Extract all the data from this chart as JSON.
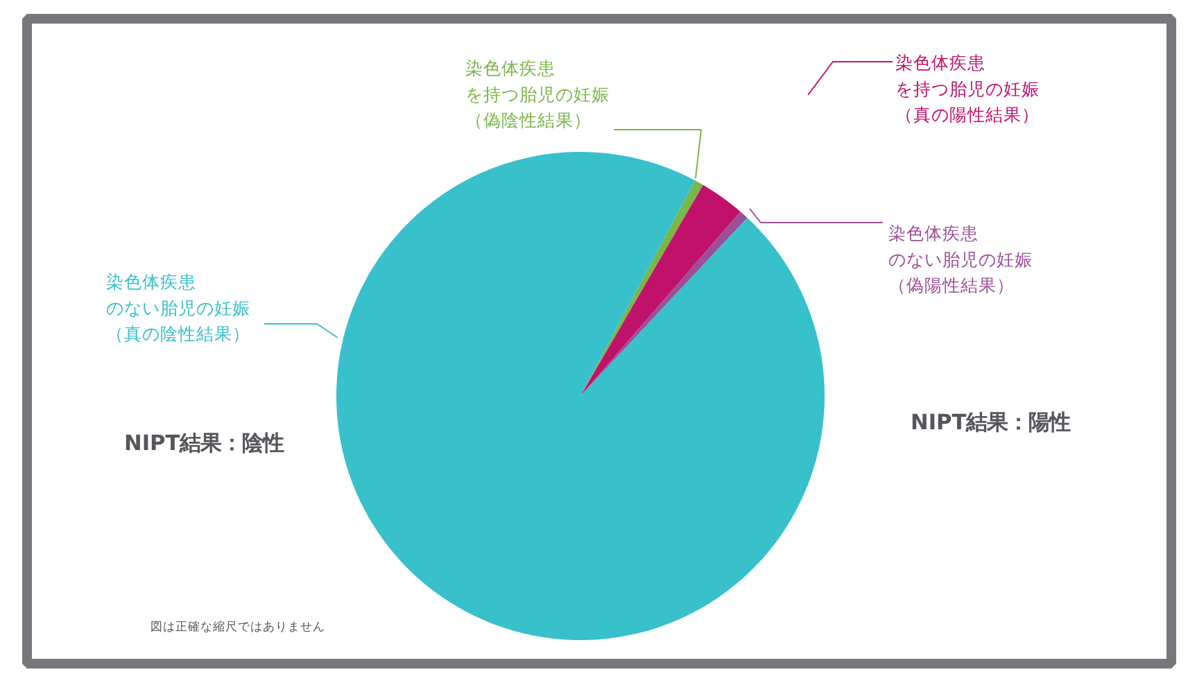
{
  "chart_data": {
    "type": "pie",
    "categories": [
      "染色体疾患を持つ胎児の妊娠（偽陰性結果）",
      "染色体疾患を持つ胎児の妊娠（真の陽性結果）",
      "染色体疾患のない胎児の妊娠（偽陽性結果）",
      "染色体疾患のない胎児の妊娠（真の陰性結果）"
    ],
    "values": [
      0.6,
      3,
      0.6,
      95.8
    ],
    "colors": [
      "#7ab648",
      "#c0116b",
      "#9b4f96",
      "#38c0cb"
    ],
    "annotations": [
      "NIPT結果：陰性",
      "NIPT結果：陽性",
      "図は正確な縮尺ではありません"
    ]
  }
}
